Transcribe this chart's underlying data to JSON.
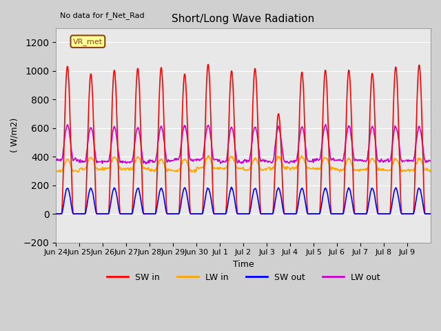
{
  "title": "Short/Long Wave Radiation",
  "xlabel": "Time",
  "ylabel": "( W/m2)",
  "ylim": [
    -200,
    1300
  ],
  "yticks": [
    -200,
    0,
    200,
    400,
    600,
    800,
    1000,
    1200
  ],
  "annotation": "No data for f_Net_Rad",
  "legend_label": "VR_met",
  "colors": {
    "SW_in": "#ff0000",
    "LW_in": "#ffa500",
    "SW_out": "#0000ff",
    "LW_out": "#cc00cc"
  },
  "series_labels": [
    "SW in",
    "LW in",
    "SW out",
    "LW out"
  ],
  "x_tick_labels": [
    "Jun 24",
    "Jun 25",
    "Jun 26",
    "Jun 27",
    "Jun 28",
    "Jun 29",
    "Jun 30",
    "Jul 1",
    "Jul 2",
    "Jul 3",
    "Jul 4",
    "Jul 5",
    "Jul 6",
    "Jul 7",
    "Jul 8",
    "Jul 9"
  ],
  "x_tick_positions": [
    0,
    1,
    2,
    3,
    4,
    5,
    6,
    7,
    8,
    9,
    10,
    11,
    12,
    13,
    14,
    15
  ],
  "plot_bg_color": "#e8e8e8",
  "fig_bg_color": "#d0d0d0",
  "n_days": 16,
  "pts_per_day": 48
}
